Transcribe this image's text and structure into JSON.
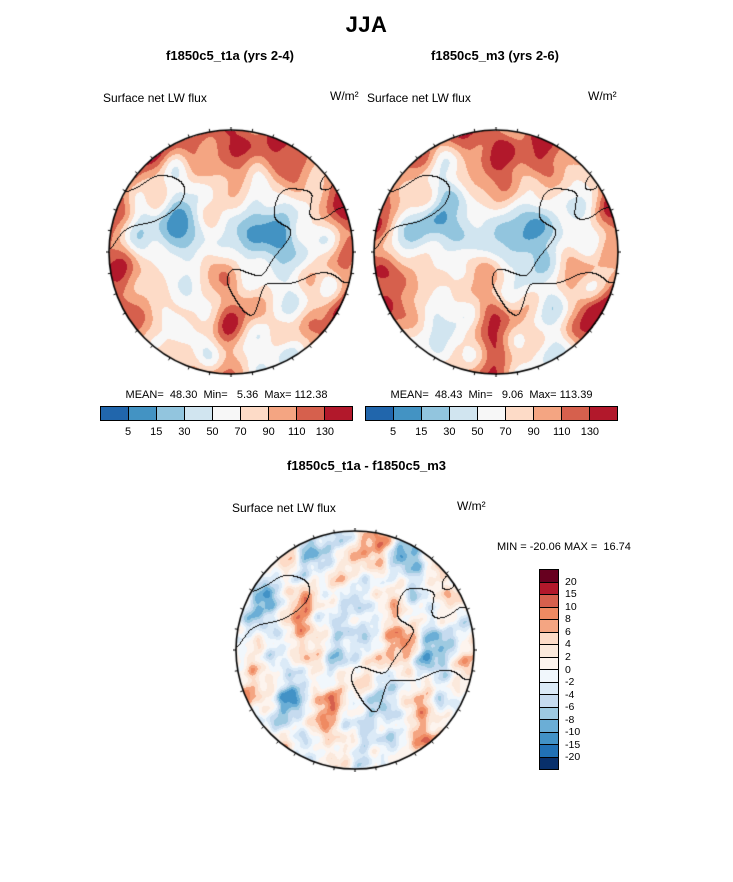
{
  "title": "JJA",
  "panels": [
    {
      "header": "f1850c5_t1a (yrs 2-4)",
      "field_label": "Surface net LW flux",
      "units": "W/m²",
      "stats_line": "MEAN=  48.30  Min=   5.36  Max= 112.38",
      "colorbar": {
        "ticks": [
          "5",
          "15",
          "30",
          "50",
          "70",
          "90",
          "110",
          "130"
        ],
        "colors": [
          "#2166ac",
          "#4393c3",
          "#92c5de",
          "#d1e5f0",
          "#f7f7f7",
          "#fddbc7",
          "#f4a582",
          "#d6604d",
          "#b2182b"
        ]
      }
    },
    {
      "header": "f1850c5_m3 (yrs 2-6)",
      "field_label": "Surface net LW flux",
      "units": "W/m²",
      "stats_line": "MEAN=  48.43  Min=   9.06  Max= 113.39",
      "colorbar": {
        "ticks": [
          "5",
          "15",
          "30",
          "50",
          "70",
          "90",
          "110",
          "130"
        ],
        "colors": [
          "#2166ac",
          "#4393c3",
          "#92c5de",
          "#d1e5f0",
          "#f7f7f7",
          "#fddbc7",
          "#f4a582",
          "#d6604d",
          "#b2182b"
        ]
      }
    }
  ],
  "diff": {
    "header": "f1850c5_t1a - f1850c5_m3",
    "field_label": "Surface net LW flux",
    "units": "W/m²",
    "stats_line": "MIN = -20.06 MAX =  16.74",
    "colorbar": {
      "ticks": [
        "20",
        "15",
        "10",
        "8",
        "6",
        "4",
        "2",
        "0",
        "-2",
        "-4",
        "-6",
        "-8",
        "-10",
        "-15",
        "-20"
      ],
      "colors": [
        "#67001f",
        "#b2182b",
        "#d6604d",
        "#ef8a62",
        "#f4a582",
        "#fddbc7",
        "#fbe9dc",
        "#fdf4ee",
        "#f1f7fc",
        "#dbeaf7",
        "#c6dbef",
        "#9ecae1",
        "#6baed6",
        "#4292c6",
        "#2171b5",
        "#08306b"
      ]
    }
  },
  "chart_data": [
    {
      "type": "heatmap",
      "subtype": "polar-stereographic-contour-map",
      "season": "JJA",
      "title": "f1850c5_t1a (yrs 2-4)",
      "variable": "Surface net LW flux",
      "units": "W/m²",
      "mean": 48.3,
      "min": 5.36,
      "max": 112.38,
      "contour_levels": [
        5,
        15,
        30,
        50,
        70,
        90,
        110,
        130
      ],
      "palette": [
        "#2166ac",
        "#4393c3",
        "#92c5de",
        "#d1e5f0",
        "#f7f7f7",
        "#fddbc7",
        "#f4a582",
        "#d6604d",
        "#b2182b"
      ],
      "legend_position": "bottom"
    },
    {
      "type": "heatmap",
      "subtype": "polar-stereographic-contour-map",
      "season": "JJA",
      "title": "f1850c5_m3 (yrs 2-6)",
      "variable": "Surface net LW flux",
      "units": "W/m²",
      "mean": 48.43,
      "min": 9.06,
      "max": 113.39,
      "contour_levels": [
        5,
        15,
        30,
        50,
        70,
        90,
        110,
        130
      ],
      "palette": [
        "#2166ac",
        "#4393c3",
        "#92c5de",
        "#d1e5f0",
        "#f7f7f7",
        "#fddbc7",
        "#f4a582",
        "#d6604d",
        "#b2182b"
      ],
      "legend_position": "bottom"
    },
    {
      "type": "heatmap",
      "subtype": "polar-stereographic-contour-map",
      "season": "JJA",
      "title": "f1850c5_t1a - f1850c5_m3",
      "variable": "Surface net LW flux",
      "units": "W/m²",
      "min": -20.06,
      "max": 16.74,
      "contour_levels": [
        20,
        15,
        10,
        8,
        6,
        4,
        2,
        0,
        -2,
        -4,
        -6,
        -8,
        -10,
        -15,
        -20
      ],
      "palette": [
        "#67001f",
        "#b2182b",
        "#d6604d",
        "#ef8a62",
        "#f4a582",
        "#fddbc7",
        "#fbe9dc",
        "#fdf4ee",
        "#f1f7fc",
        "#dbeaf7",
        "#c6dbef",
        "#9ecae1",
        "#6baed6",
        "#4292c6",
        "#2171b5",
        "#08306b"
      ],
      "legend_position": "right"
    }
  ]
}
